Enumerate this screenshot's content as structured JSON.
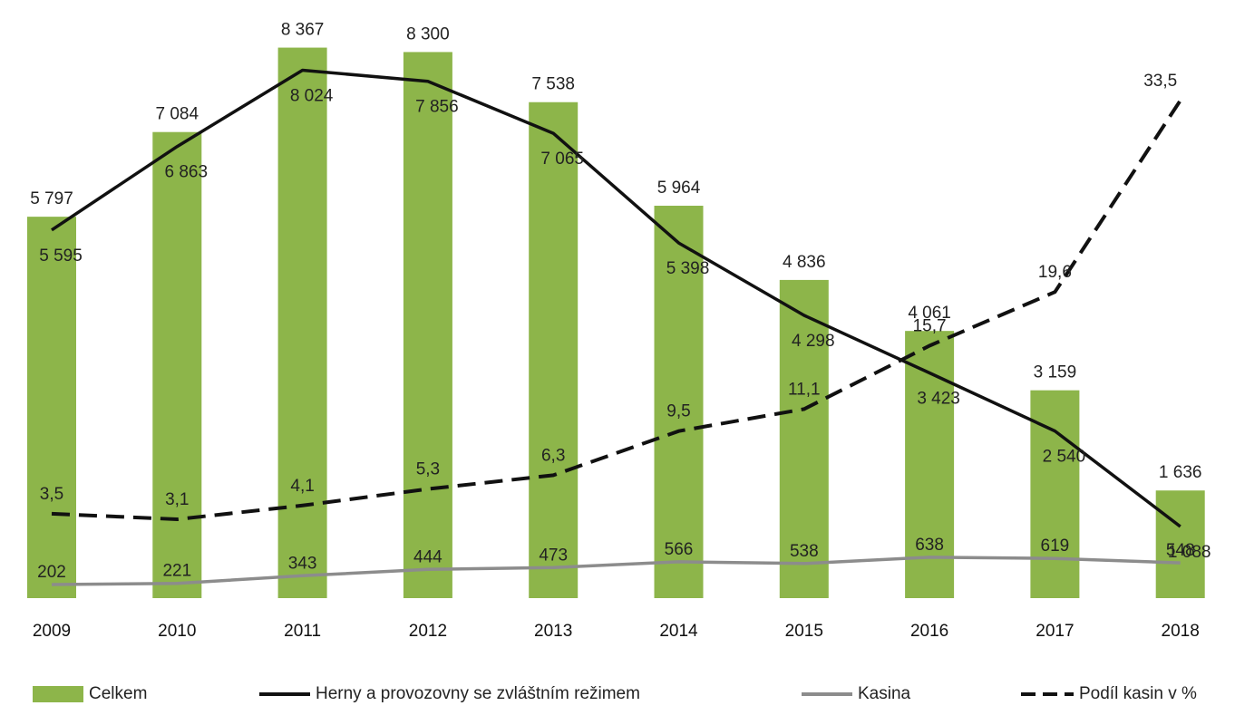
{
  "chart_data": {
    "type": "bar",
    "categories": [
      "2009",
      "2010",
      "2011",
      "2012",
      "2013",
      "2014",
      "2015",
      "2016",
      "2017",
      "2018"
    ],
    "series": [
      {
        "name": "Celkem",
        "kind": "bar",
        "color": "#8db54a",
        "values": [
          5797,
          7084,
          8367,
          8300,
          7538,
          5964,
          4836,
          4061,
          3159,
          1636
        ],
        "labels": [
          "5 797",
          "7 084",
          "8 367",
          "8 300",
          "7 538",
          "5 964",
          "4 836",
          "4 061",
          "3 159",
          "1 636"
        ]
      },
      {
        "name": "Herny a provozovny se zvláštním režimem",
        "kind": "line",
        "color": "#111111",
        "values": [
          5595,
          6863,
          8024,
          7856,
          7065,
          5398,
          4298,
          3423,
          2540,
          1088
        ],
        "labels": [
          "5 595",
          "6 863",
          "8 024",
          "7 856",
          "7 065",
          "5 398",
          "4 298",
          "3 423",
          "2 540",
          "1 088"
        ]
      },
      {
        "name": "Kasina",
        "kind": "line",
        "color": "#8c8c8c",
        "values": [
          202,
          221,
          343,
          444,
          473,
          566,
          538,
          638,
          619,
          548
        ],
        "labels": [
          "202",
          "221",
          "343",
          "444",
          "473",
          "566",
          "538",
          "638",
          "619",
          "548"
        ]
      },
      {
        "name": "Podíl kasin v %",
        "kind": "dashed-line",
        "color": "#111111",
        "values": [
          3.5,
          3.1,
          4.1,
          5.3,
          6.3,
          9.5,
          11.1,
          15.7,
          19.6,
          33.5
        ],
        "labels": [
          "3,5",
          "3,1",
          "4,1",
          "5,3",
          "6,3",
          "9,5",
          "11,1",
          "15,7",
          "19,6",
          "33,5"
        ]
      }
    ],
    "legend_position": "bottom",
    "grid": false
  }
}
